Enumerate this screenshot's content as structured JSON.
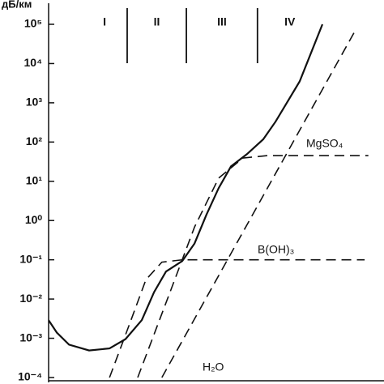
{
  "chart_data": {
    "type": "line",
    "y_label": "дБ/км",
    "log_y": true,
    "ylim": [
      0.0001,
      100000
    ],
    "yticks": [
      {
        "value": 0.0001,
        "label": "10⁻⁴"
      },
      {
        "value": 0.001,
        "label": "10⁻³"
      },
      {
        "value": 0.01,
        "label": "10⁻²"
      },
      {
        "value": 0.1,
        "label": "10⁻¹"
      },
      {
        "value": 1,
        "label": "10⁰"
      },
      {
        "value": 10,
        "label": "10¹"
      },
      {
        "value": 100,
        "label": "10²"
      },
      {
        "value": 1000,
        "label": "10³"
      },
      {
        "value": 10000,
        "label": "10⁴"
      },
      {
        "value": 100000,
        "label": "10⁵"
      }
    ],
    "xlim": [
      0,
      9.86
    ],
    "regions": {
      "labels": [
        "I",
        "II",
        "III",
        "IV"
      ],
      "bounds": [
        2.31,
        4.05,
        6.14
      ]
    },
    "series": [
      {
        "color": "#111111",
        "dashed": false,
        "x": [
          0,
          0.24,
          0.6,
          1.19,
          1.79,
          2.26,
          2.74,
          3.1,
          3.45,
          3.93,
          4.29,
          4.64,
          5,
          5.36,
          5.83,
          6.31,
          6.67,
          7.38,
          8.05
        ],
        "values": [
          0.0029,
          0.0014,
          0.00069,
          0.00049,
          0.00055,
          0.00095,
          0.0029,
          0.015,
          0.05,
          0.093,
          0.26,
          1.4,
          6.7,
          24,
          49,
          117,
          330,
          3500,
          100000
        ]
      },
      {
        "name": "MgSO₄",
        "color": "#111111",
        "dashed": true,
        "x": [
          2.62,
          3.57,
          4.29,
          5,
          5.71,
          6.43,
          9.4
        ],
        "values": [
          0.0001,
          0.015,
          0.68,
          12,
          39,
          45,
          45
        ]
      },
      {
        "name": "B(OH)₃",
        "color": "#111111",
        "dashed": true,
        "x": [
          1.79,
          2.38,
          2.86,
          3.33,
          3.93,
          9.29
        ],
        "values": [
          0.0001,
          0.0023,
          0.031,
          0.087,
          0.1,
          0.1
        ]
      },
      {
        "name": "H₂O",
        "color": "#111111",
        "dashed": true,
        "x": [
          3.33,
          9.05
        ],
        "values": [
          0.0001,
          79000
        ]
      }
    ]
  }
}
